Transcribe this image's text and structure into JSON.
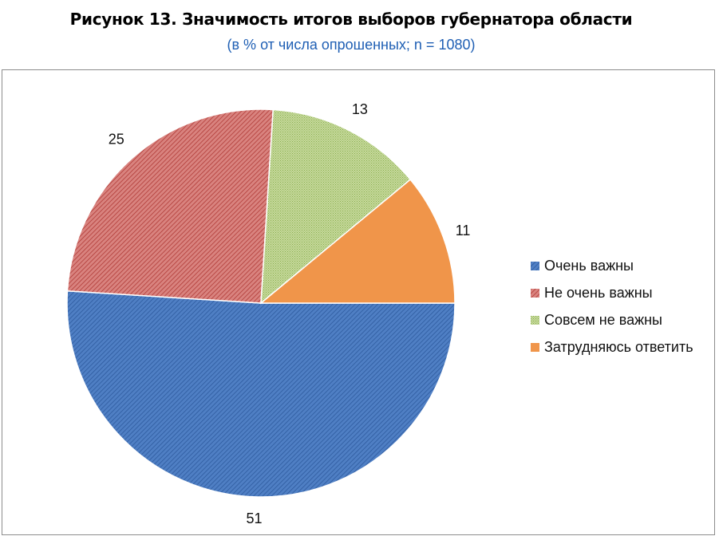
{
  "chart_data": {
    "type": "pie",
    "title": "Рисунок 13. Значимость итогов выборов губернатора области",
    "subtitle": "(в % от числа опрошенных; n  = 1080)",
    "categories": [
      "Очень важны",
      "Не очень важны",
      "Совсем не важны",
      "Затрудняюсь ответить"
    ],
    "values": [
      51,
      25,
      13,
      11
    ],
    "colors": [
      "#4f7fc4",
      "#c0504d",
      "#9bbb59",
      "#f0954a"
    ],
    "data_labels": [
      "51",
      "25",
      "13",
      "11"
    ],
    "legend_position": "right"
  }
}
